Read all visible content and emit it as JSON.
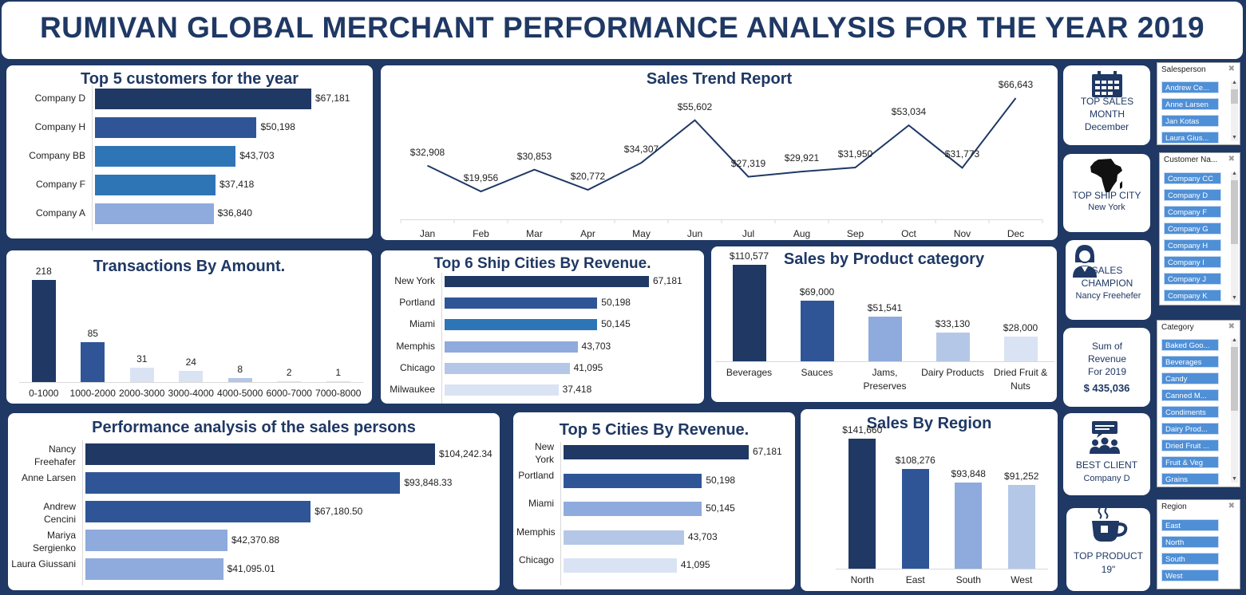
{
  "header": {
    "title": "RUMIVAN GLOBAL MERCHANT PERFORMANCE ANALYSIS FOR THE YEAR 2019"
  },
  "colors": {
    "navy": "#1f3864",
    "dark_blue": "#2f5597",
    "mid_blue": "#2e75b6",
    "light_blue": "#8faadc",
    "pale_blue": "#b4c7e7",
    "lightest_blue": "#dae3f3"
  },
  "chart_data": [
    {
      "type": "bar",
      "orientation": "horizontal",
      "title": "Top 5 customers for the year",
      "categories": [
        "Company D",
        "Company H",
        "Company BB",
        "Company F",
        "Company A"
      ],
      "values": [
        67181,
        50198,
        43703,
        37418,
        36840
      ],
      "value_labels": [
        "$67,181",
        "$50,198",
        "$43,703",
        "$37,418",
        "$36,840"
      ],
      "colors": [
        "#1f3864",
        "#2f5597",
        "#2e75b6",
        "#2e75b6",
        "#8faadc"
      ]
    },
    {
      "type": "line",
      "title": "Sales Trend Report",
      "categories": [
        "Jan",
        "Feb",
        "Mar",
        "Apr",
        "May",
        "Jun",
        "Jul",
        "Aug",
        "Sep",
        "Oct",
        "Nov",
        "Dec"
      ],
      "values": [
        32908,
        19956,
        30853,
        20772,
        34307,
        55602,
        27319,
        29921,
        31950,
        53034,
        31773,
        66643
      ],
      "value_labels": [
        "$32,908",
        "$19,956",
        "$30,853",
        "$20,772",
        "$34,307",
        "$55,602",
        "$27,319",
        "$29,921",
        "$31,950",
        "$53,034",
        "$31,773",
        "$66,643"
      ]
    },
    {
      "type": "bar",
      "title": "Transactions By Amount.",
      "categories": [
        "0-1000",
        "1000-2000",
        "2000-3000",
        "3000-4000",
        "4000-5000",
        "6000-7000",
        "7000-8000"
      ],
      "values": [
        218,
        85,
        31,
        24,
        8,
        2,
        1
      ],
      "value_labels": [
        "218",
        "85",
        "31",
        "24",
        "8",
        "2",
        "1"
      ],
      "colors": [
        "#1f3864",
        "#2f5597",
        "#dae3f3",
        "#dae3f3",
        "#b4c7e7",
        "#dae3f3",
        "#dae3f3"
      ]
    },
    {
      "type": "bar",
      "orientation": "horizontal",
      "title": "Top 6 Ship Cities By Revenue.",
      "categories": [
        "New York",
        "Portland",
        "Miami",
        "Memphis",
        "Chicago",
        "Milwaukee"
      ],
      "values": [
        67181,
        50198,
        50145,
        43703,
        41095,
        37418
      ],
      "value_labels": [
        "67,181",
        "50,198",
        "50,145",
        "43,703",
        "41,095",
        "37,418"
      ],
      "colors": [
        "#1f3864",
        "#2f5597",
        "#2e75b6",
        "#8faadc",
        "#b4c7e7",
        "#dae3f3"
      ]
    },
    {
      "type": "bar",
      "title": "Sales by Product category",
      "categories": [
        "Beverages",
        "Sauces",
        "Jams, Preserves",
        "Dairy Products",
        "Dried Fruit & Nuts"
      ],
      "values": [
        110577,
        69000,
        51541,
        33130,
        28000
      ],
      "value_labels": [
        "$110,577",
        "$69,000",
        "$51,541",
        "$33,130",
        "$28,000"
      ],
      "colors": [
        "#1f3864",
        "#2f5597",
        "#8faadc",
        "#b4c7e7",
        "#dae3f3"
      ]
    },
    {
      "type": "bar",
      "orientation": "horizontal",
      "title": "Performance analysis of the sales persons",
      "categories": [
        "Nancy Freehafer",
        "Anne Larsen",
        "Andrew Cencini",
        "Mariya Sergienko",
        "Laura Giussani"
      ],
      "values": [
        104242.34,
        93848.33,
        67180.5,
        42370.88,
        41095.01
      ],
      "value_labels": [
        "$104,242.34",
        "$93,848.33",
        "$67,180.50",
        "$42,370.88",
        "$41,095.01"
      ],
      "colors": [
        "#1f3864",
        "#2f5597",
        "#2f5597",
        "#8faadc",
        "#8faadc"
      ]
    },
    {
      "type": "bar",
      "orientation": "horizontal",
      "title": "Top 5 Cities By Revenue.",
      "categories": [
        "New York",
        "Portland",
        "Miami",
        "Memphis",
        "Chicago"
      ],
      "values": [
        67181,
        50198,
        50145,
        43703,
        41095
      ],
      "value_labels": [
        "67,181",
        "50,198",
        "50,145",
        "43,703",
        "41,095"
      ],
      "colors": [
        "#1f3864",
        "#2f5597",
        "#8faadc",
        "#b4c7e7",
        "#dae3f3"
      ]
    },
    {
      "type": "bar",
      "title": "Sales By Region",
      "categories": [
        "North",
        "East",
        "South",
        "West"
      ],
      "values": [
        141660,
        108276,
        93848,
        91252
      ],
      "value_labels": [
        "$141,660",
        "$108,276",
        "$93,848",
        "$91,252"
      ],
      "colors": [
        "#1f3864",
        "#2f5597",
        "#8faadc",
        "#b4c7e7"
      ]
    }
  ],
  "kpis": [
    {
      "icon": "calendar-icon",
      "label": "TOP SALES MONTH",
      "value": "December"
    },
    {
      "icon": "africa-map-icon",
      "label": "TOP SHIP CITY",
      "value": "New York"
    },
    {
      "icon": "person-icon",
      "label": "SALES CHAMPION",
      "value": "Nancy Freehefer"
    },
    {
      "icon": "",
      "label": "Sum of Revenue For 2019",
      "value": "$ 435,036"
    },
    {
      "icon": "group-chat-icon",
      "label": "BEST CLIENT",
      "value": "Company D"
    },
    {
      "icon": "coffee-cup-icon",
      "label": "TOP PRODUCT",
      "value": "19\""
    }
  ],
  "slicers": {
    "salesperson": {
      "header": "Salesperson",
      "items": [
        "Andrew Ce...",
        "Anne Larsen",
        "Jan Kotas",
        "Laura Gius..."
      ]
    },
    "customer": {
      "header": "Customer Na...",
      "items": [
        "Company CC",
        "Company D",
        "Company F",
        "Company G",
        "Company H",
        "Company I",
        "Company J",
        "Company K"
      ]
    },
    "category": {
      "header": "Category",
      "items": [
        "Baked Goo...",
        "Beverages",
        "Candy",
        "Canned M...",
        "Condiments",
        "Dairy Prod...",
        "Dried Fruit ...",
        "Fruit & Veg",
        "Grains"
      ]
    },
    "region": {
      "header": "Region",
      "items": [
        "East",
        "North",
        "South",
        "West"
      ]
    }
  }
}
